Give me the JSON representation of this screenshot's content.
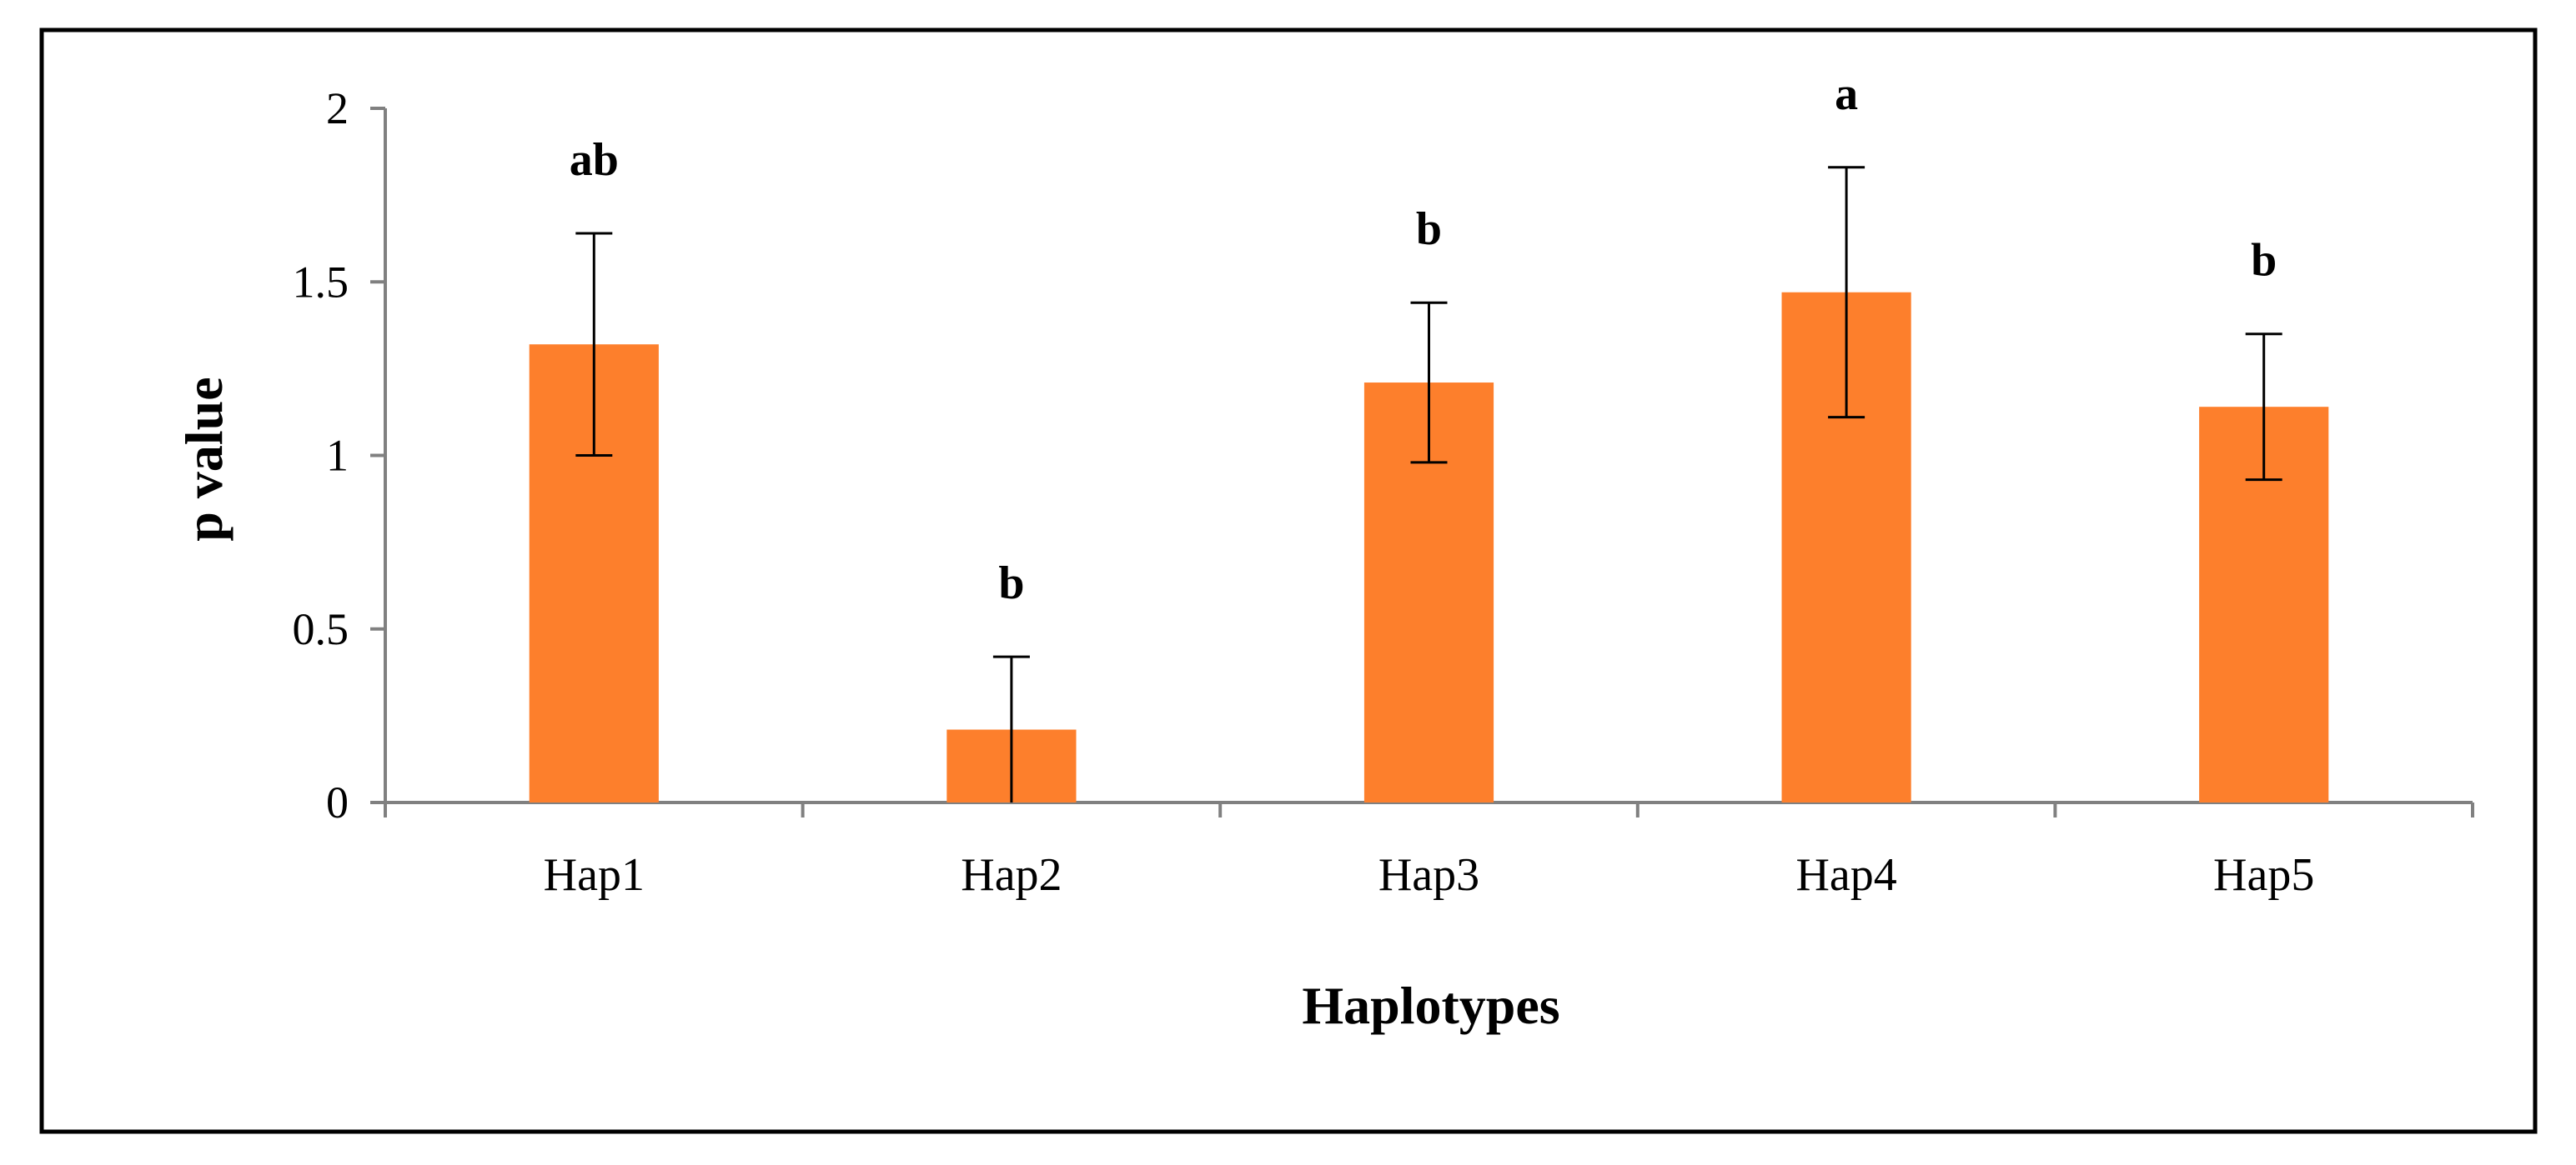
{
  "chart_data": {
    "type": "bar",
    "title": "",
    "xlabel": "Haplotypes",
    "ylabel": "p value",
    "categories": [
      "Hap1",
      "Hap2",
      "Hap3",
      "Hap4",
      "Hap5"
    ],
    "values": [
      1.32,
      0.21,
      1.21,
      1.47,
      1.14
    ],
    "error": [
      0.32,
      0.21,
      0.23,
      0.36,
      0.21
    ],
    "significance": [
      "ab",
      "b",
      "b",
      "a",
      "b"
    ],
    "ylim": [
      0,
      2
    ],
    "yticks": [
      "0",
      "0.5",
      "1",
      "1.5",
      "2"
    ],
    "ytick_values": [
      0,
      0.5,
      1,
      1.5,
      2
    ],
    "grid": false,
    "legend": "none",
    "colors": {
      "bar": "#FD7F2C",
      "axis": "#808080",
      "error_bar": "#000000",
      "frame": "#000000"
    }
  }
}
